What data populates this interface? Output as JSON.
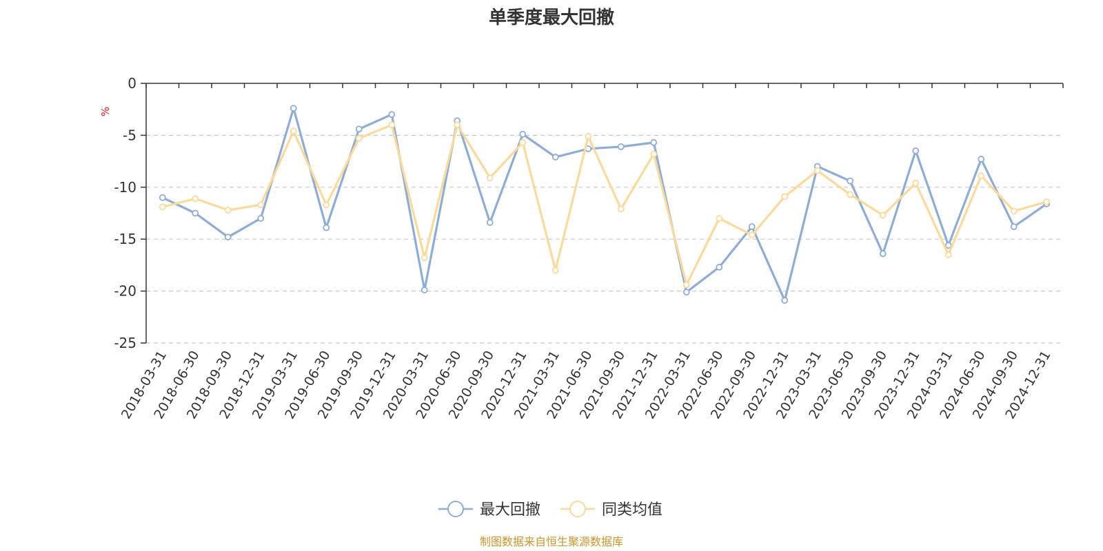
{
  "chart_data": {
    "type": "line",
    "title": "单季度最大回撤",
    "ylabel": "%",
    "xlabel": "",
    "ylim": [
      -25,
      0
    ],
    "yticks": [
      0,
      -5,
      -10,
      -15,
      -20,
      -25
    ],
    "grid": true,
    "legend_position": "bottom",
    "categories": [
      "2018-03-31",
      "2018-06-30",
      "2018-09-30",
      "2018-12-31",
      "2019-03-31",
      "2019-06-30",
      "2019-09-30",
      "2019-12-31",
      "2020-03-31",
      "2020-06-30",
      "2020-09-30",
      "2020-12-31",
      "2021-03-31",
      "2021-06-30",
      "2021-09-30",
      "2021-12-31",
      "2022-03-31",
      "2022-06-30",
      "2022-09-30",
      "2022-12-31",
      "2023-03-31",
      "2023-06-30",
      "2023-09-30",
      "2023-12-31",
      "2024-03-31",
      "2024-06-30",
      "2024-09-30",
      "2024-12-31"
    ],
    "series": [
      {
        "name": "最大回撤",
        "color": "#8eacd8",
        "values": [
          -11.0,
          -12.5,
          -14.8,
          -13.0,
          -2.4,
          -13.9,
          -4.4,
          -3.0,
          -19.9,
          -3.6,
          -13.4,
          -4.9,
          -7.1,
          -6.3,
          -6.1,
          -5.7,
          -20.1,
          -17.7,
          -13.8,
          -20.9,
          -8.0,
          -9.4,
          -16.4,
          -6.5,
          -15.6,
          -7.3,
          -13.8,
          -11.6
        ]
      },
      {
        "name": "同类均值",
        "color": "#fbd99a",
        "values": [
          -11.9,
          -11.1,
          -12.2,
          -11.7,
          -4.6,
          -11.7,
          -5.3,
          -4.0,
          -16.8,
          -4.0,
          -9.1,
          -5.7,
          -18.0,
          -5.1,
          -12.1,
          -6.8,
          -19.4,
          -13.0,
          -14.6,
          -10.9,
          -8.4,
          -10.7,
          -12.7,
          -9.6,
          -16.5,
          -8.9,
          -12.3,
          -11.4
        ]
      }
    ]
  },
  "source_text": "制图数据来自恒生聚源数据库"
}
